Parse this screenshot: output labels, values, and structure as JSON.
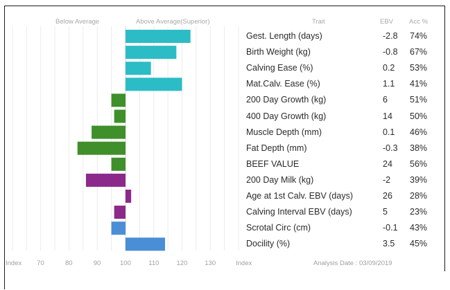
{
  "header": {
    "below_label": "Below Average",
    "above_label": "Above Average(Superior)",
    "trait_label": "Trait",
    "ebv_label": "EBV",
    "acc_label": "Acc %"
  },
  "footer": {
    "index_left": "Index",
    "index_right": "Index",
    "analysis": "Analysis Date : 03/09/2019"
  },
  "chart_data": {
    "type": "bar",
    "orientation": "horizontal",
    "baseline": 100,
    "xlim": [
      60,
      140
    ],
    "xticks": [
      70,
      80,
      90,
      100,
      110,
      120,
      130
    ],
    "grid": true,
    "categories": [
      "Gest. Length (days)",
      "Birth Weight (kg)",
      "Calving Ease (%)",
      "Mat.Calv. Ease (%)",
      "200 Day Growth (kg)",
      "400 Day Growth (kg)",
      "Muscle Depth (mm)",
      "Fat Depth (mm)",
      "BEEF VALUE",
      "200 Day Milk (kg)",
      "Age at 1st Calv. EBV (days)",
      "Calving Interval EBV (days)",
      "Scrotal Circ (cm)",
      "Docility (%)"
    ],
    "values": [
      123,
      118,
      109,
      120,
      95,
      96,
      88,
      83,
      95,
      86,
      102,
      96,
      95,
      114
    ],
    "ebv": [
      "-2.8",
      "-0.8",
      "0.2",
      "1.1",
      "6",
      "14",
      "0.1",
      "-0.3",
      "24",
      "-2",
      "26",
      "5",
      "-0.1",
      "3.5"
    ],
    "acc": [
      "74%",
      "67%",
      "53%",
      "41%",
      "51%",
      "50%",
      "46%",
      "38%",
      "56%",
      "39%",
      "28%",
      "23%",
      "43%",
      "45%"
    ],
    "colors": [
      "#2cbcc6",
      "#2cbcc6",
      "#2cbcc6",
      "#2cbcc6",
      "#3f8f2a",
      "#3f8f2a",
      "#3f8f2a",
      "#3f8f2a",
      "#3f8f2a",
      "#8b2a8b",
      "#8b2a8b",
      "#8b2a8b",
      "#4a8ed6",
      "#4a8ed6"
    ]
  }
}
